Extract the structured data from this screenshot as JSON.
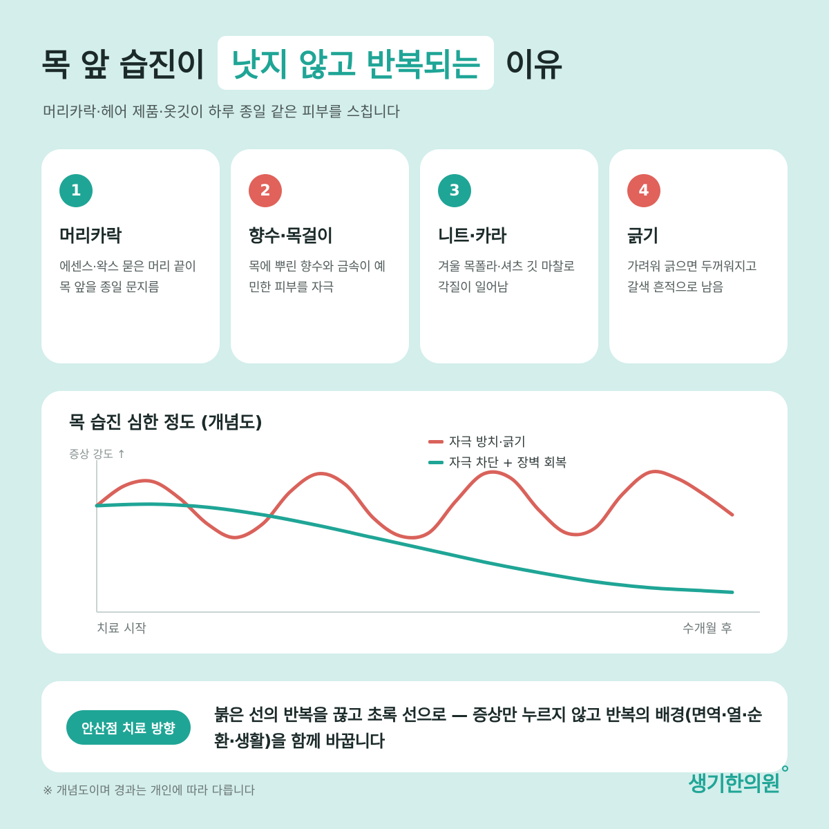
{
  "header": {
    "title_pre": "목 앞 습진이",
    "title_highlight": "낫지 않고 반복되는",
    "title_post": "이유",
    "subtitle": "머리카락·헤어 제품·옷깃이 하루 종일 같은 피부를 스칩니다"
  },
  "cards": [
    {
      "num": "1",
      "title": "머리카락",
      "desc": "에센스·왁스 묻은 머리 끝이 목 앞을 종일 문지름",
      "color": "#1fa596"
    },
    {
      "num": "2",
      "title": "향수·목걸이",
      "desc": "목에 뿌린 향수와 금속이 예민한 피부를 자극",
      "color": "#e0625a"
    },
    {
      "num": "3",
      "title": "니트·카라",
      "desc": "겨울 목폴라·셔츠 깃 마찰로 각질이 일어남",
      "color": "#1fa596"
    },
    {
      "num": "4",
      "title": "긁기",
      "desc": "가려워 긁으면 두꺼워지고 갈색 흔적으로 남음",
      "color": "#e0625a"
    }
  ],
  "chart_data": {
    "type": "line",
    "title": "목 습진 심한 정도 (개념도)",
    "ylabel": "증상 강도 ↑",
    "x_start_label": "치료 시작",
    "x_end_label": "수개월 후",
    "ylim": [
      0,
      100
    ],
    "xlim": [
      0,
      100
    ],
    "grid": false,
    "legend_position": "top-center",
    "series": [
      {
        "name": "자극 방치·긁기",
        "color": "#d9625b",
        "x": [
          0,
          4.3,
          8.7,
          13,
          17.4,
          21.7,
          26.1,
          30.4,
          34.8,
          39.1,
          43.5,
          47.8,
          52.2,
          56.5,
          60.9,
          65.2,
          69.6,
          73.9,
          78.3,
          82.6,
          87,
          91.3,
          95.7,
          100
        ],
        "y": [
          70,
          83,
          86,
          75,
          58,
          49,
          58,
          79,
          91,
          84,
          62,
          50,
          52,
          73,
          91,
          88,
          67,
          52,
          55,
          77,
          92,
          88,
          77,
          64
        ]
      },
      {
        "name": "자극 차단 + 장벽 회복",
        "color": "#1fa596",
        "x": [
          0,
          8.7,
          17.4,
          26.1,
          34.8,
          43.5,
          52.2,
          60.9,
          69.6,
          78.3,
          87,
          95.7,
          100
        ],
        "y": [
          70,
          71,
          69,
          64,
          57,
          49,
          41,
          33,
          26,
          20,
          16,
          14,
          13
        ]
      }
    ]
  },
  "bottom": {
    "badge": "안산점 치료 방향",
    "message": "붉은 선의 반복을 끊고 초록 선으로 — 증상만 누르지 않고 반복의 배경(면역·열·순환·생활)을 함께 바꿉니다"
  },
  "footnote": "※ 개념도이며 경과는 개인에 따라 다릅니다",
  "logo": "생기한의원"
}
